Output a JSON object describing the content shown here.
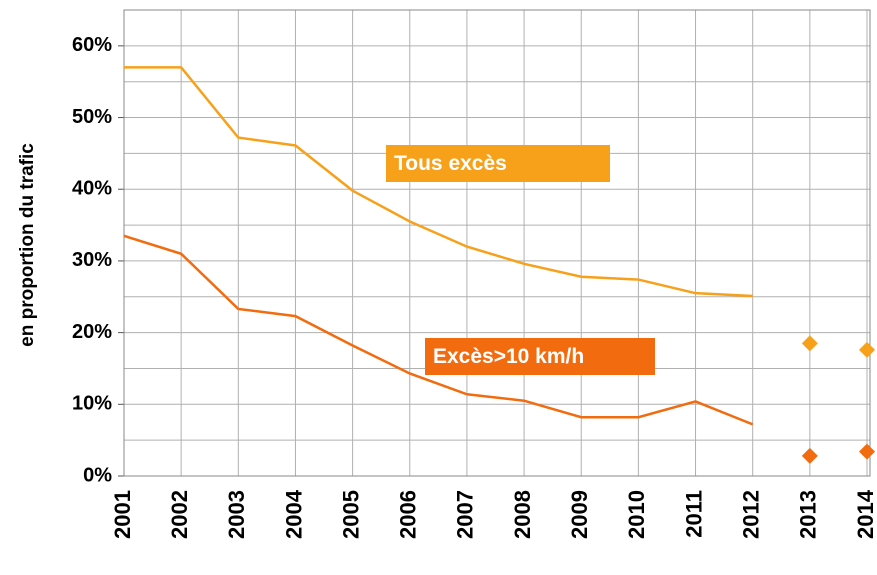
{
  "chart_data": {
    "type": "line",
    "y_label": "en proportion du trafic",
    "categories": [
      "2001",
      "2002",
      "2003",
      "2004",
      "2005",
      "2006",
      "2007",
      "2008",
      "2009",
      "2010",
      "2011",
      "2012",
      "2013",
      "2014"
    ],
    "series": [
      {
        "name": "Tous excès",
        "color": "#f7a11a",
        "values": [
          57,
          57,
          47.2,
          46.1,
          39.8,
          35.5,
          32,
          29.6,
          27.8,
          27.4,
          25.5,
          25.1,
          null,
          null
        ],
        "marker_values": [
          null,
          null,
          null,
          null,
          null,
          null,
          null,
          null,
          null,
          null,
          null,
          null,
          18.5,
          17.6
        ]
      },
      {
        "name": "Excès>10 km/h",
        "color": "#f26b0f",
        "values": [
          33.5,
          31,
          23.3,
          22.3,
          18.2,
          14.3,
          11.4,
          10.5,
          8.2,
          8.2,
          10.4,
          7.2,
          null,
          null
        ],
        "marker_values": [
          null,
          null,
          null,
          null,
          null,
          null,
          null,
          null,
          null,
          null,
          null,
          null,
          2.8,
          3.4
        ]
      }
    ],
    "ylim": [
      0,
      65
    ],
    "yticks": [
      {
        "value": 0,
        "label": "0%"
      },
      {
        "value": 10,
        "label": "10%"
      },
      {
        "value": 20,
        "label": "20%"
      },
      {
        "value": 30,
        "label": "30%"
      },
      {
        "value": 40,
        "label": "40%"
      },
      {
        "value": 50,
        "label": "50%"
      },
      {
        "value": 60,
        "label": "60%"
      }
    ],
    "ygrid": [
      5,
      15,
      25,
      35,
      45,
      55,
      65
    ],
    "grid": true
  }
}
